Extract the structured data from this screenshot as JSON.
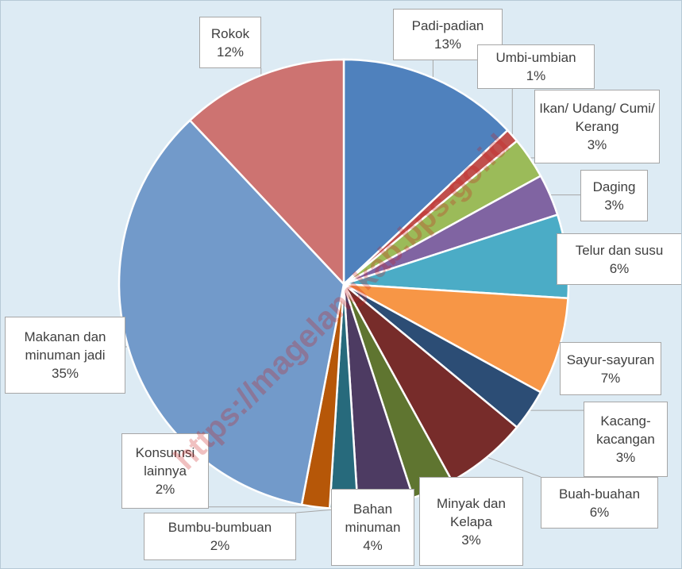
{
  "chart_data": {
    "type": "pie",
    "categories": [
      "Padi-padian",
      "Umbi-umbian",
      "Ikan/ Udang/ Cumi/ Kerang",
      "Daging",
      "Telur dan susu",
      "Sayur-sayuran",
      "Kacang-kacangan",
      "Buah-buahan",
      "Minyak dan Kelapa",
      "Bahan minuman",
      "Bumbu-bumbuan",
      "Konsumsi lainnya",
      "Makanan dan minuman jadi",
      "Rokok"
    ],
    "values": [
      13,
      1,
      3,
      3,
      6,
      7,
      3,
      6,
      3,
      4,
      2,
      2,
      35,
      12
    ],
    "value_labels": [
      "13%",
      "1%",
      "3%",
      "3%",
      "6%",
      "7%",
      "3%",
      "6%",
      "3%",
      "4%",
      "2%",
      "2%",
      "35%",
      "12%"
    ],
    "colors": [
      "#4f81bd",
      "#c0504d",
      "#9bbb59",
      "#8064a2",
      "#4bacc6",
      "#f79646",
      "#2c4d75",
      "#772c2a",
      "#5f7530",
      "#4d3b62",
      "#276a7c",
      "#b65708",
      "#729aca",
      "#cd7371"
    ],
    "watermark": "https://magelangkab.bps.go.id"
  }
}
